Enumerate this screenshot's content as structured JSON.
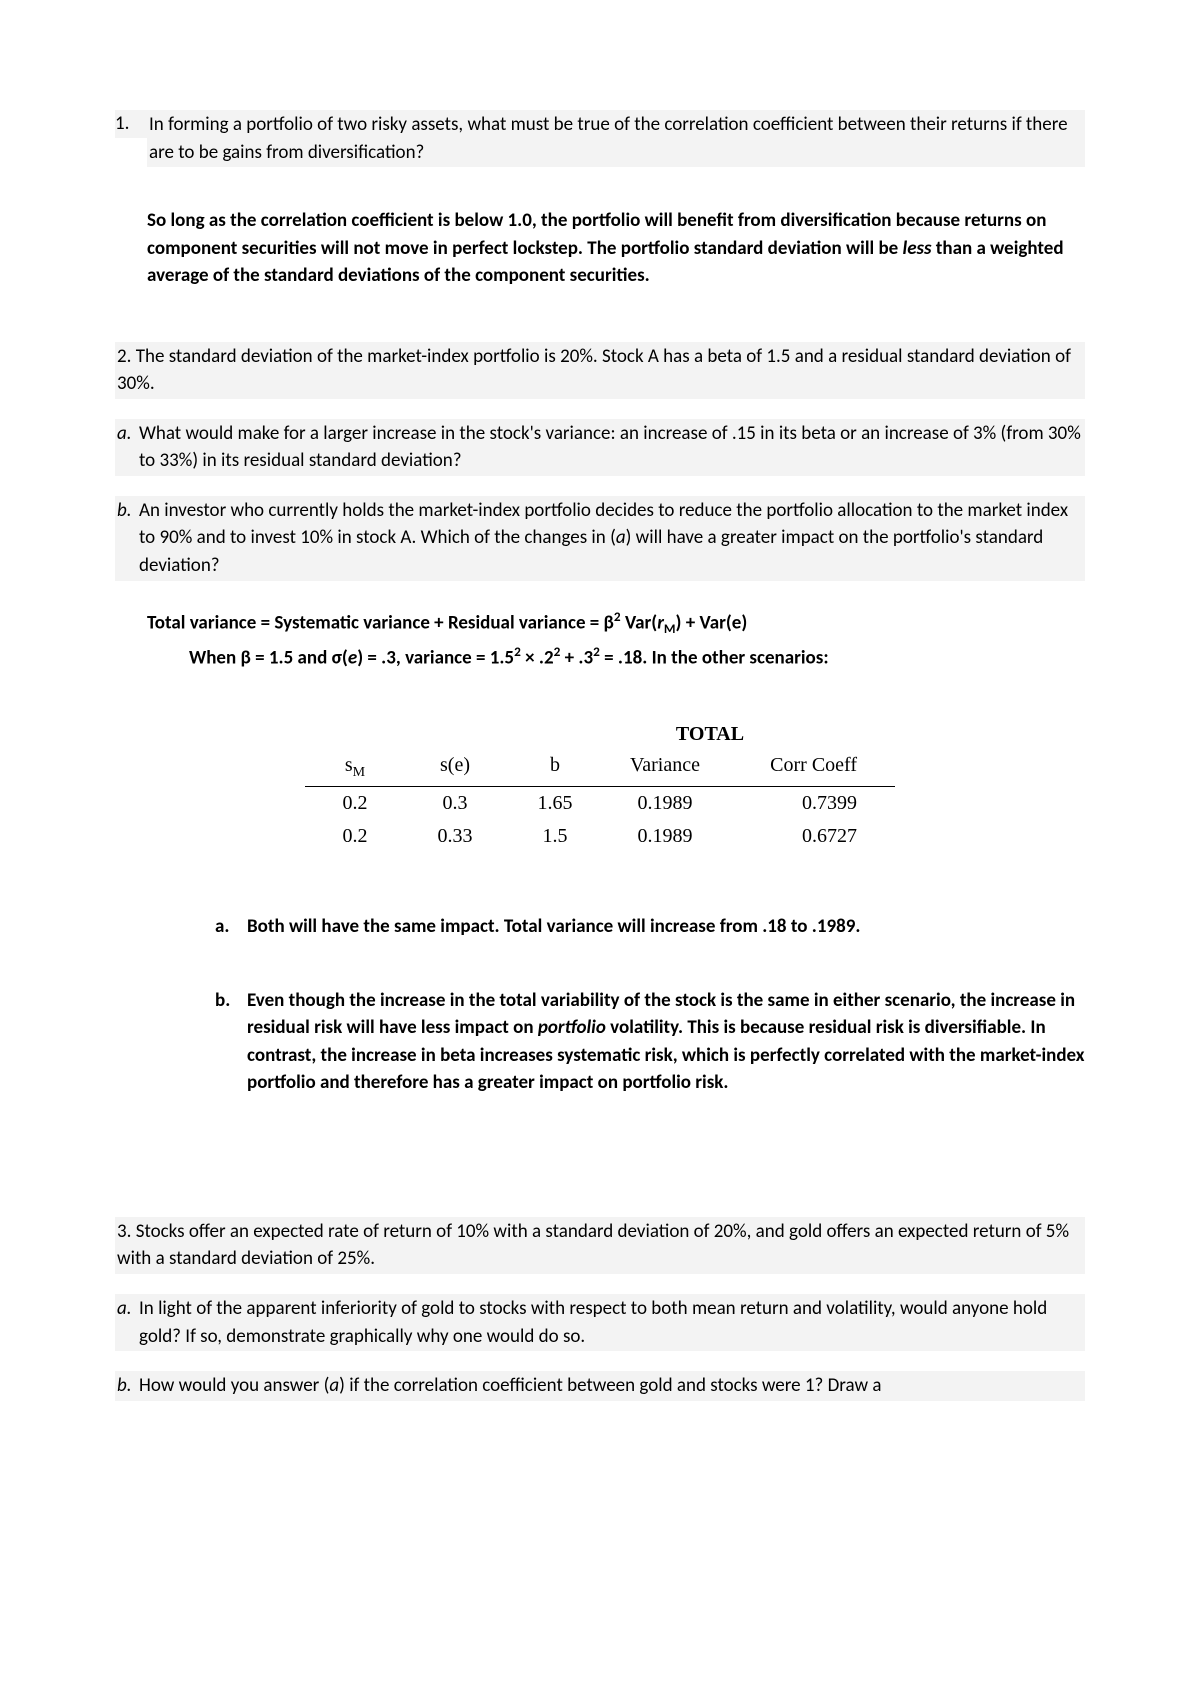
{
  "q1": {
    "number": "1.",
    "text": "In forming a portfolio of two risky assets, what must be true of the correlation coefficient between their returns if there are to be gains from diversification?",
    "answer_p1": "So long as the correlation coefficient is below 1.0, the portfolio will benefit from diversification because returns on component securities will not move in perfect lockstep. The portfolio standard deviation will be ",
    "answer_italic": "less",
    "answer_p2": " than a weighted average of the standard deviations of the component securities."
  },
  "q2": {
    "header": "2. The standard deviation of the market-index portfolio is 20%. Stock A has a beta of 1.5 and a residual standard deviation of 30%.",
    "a_label": "a.",
    "a_text": "What would make for a larger increase in the stock's variance: an increase of .15 in its beta or an increase of 3% (from 30% to 33%) in its residual standard deviation?",
    "b_label": "b.",
    "b_text_1": "An investor who currently holds the market-index portfolio decides to reduce the portfolio allocation to the market index to 90% and to invest 10% in stock A. Which of the changes in (",
    "b_text_a": "a",
    "b_text_2": ") will have a greater impact on the portfolio's standard deviation?",
    "formula1_pre": "Total variance = Systematic variance + Residual variance = β",
    "formula1_sup": "2",
    "formula1_mid": " Var(",
    "formula1_r": "r",
    "formula1_sub": "M",
    "formula1_post": ") + Var(e)",
    "formula2_pre": "When β = 1.5 and σ(",
    "formula2_e": "e",
    "formula2_mid": ") = .3, variance = 1.5",
    "formula2_s1": "2",
    "formula2_x": " × .2",
    "formula2_s2": "2",
    "formula2_p": " + .3",
    "formula2_s3": "2",
    "formula2_eq": " = .18. In the other scenarios:",
    "table": {
      "title": "TOTAL",
      "headers": {
        "sm": "s",
        "sm_sub": "M",
        "se": "s(e)",
        "b": "b",
        "var": "Variance",
        "cc": "Corr Coeff"
      },
      "rows": [
        {
          "sm": "0.2",
          "se": "0.3",
          "b": "1.65",
          "var": "0.1989",
          "cc": "0.7399"
        },
        {
          "sm": "0.2",
          "se": "0.33",
          "b": "1.5",
          "var": "0.1989",
          "cc": "0.6727"
        }
      ]
    },
    "ans_a_label": "a.",
    "ans_a_text": "Both will have the same impact. Total variance will increase from .18 to .1989.",
    "ans_b_label": "b.",
    "ans_b_p1": "Even though the increase in the total variability of the stock is the same in either scenario, the increase in residual risk will have less impact on ",
    "ans_b_italic": "portfolio",
    "ans_b_p2": " volatility. This is because residual risk is diversifiable. In contrast, the increase in beta increases systematic risk, which is perfectly correlated with the market-index portfolio and therefore has a greater impact on portfolio risk."
  },
  "q3": {
    "header": "3. Stocks offer an expected rate of return of 10% with a standard deviation of 20%, and gold offers an expected return of 5% with a standard deviation of 25%.",
    "a_label": "a.",
    "a_text": "In light of the apparent inferiority of gold to stocks with respect to both mean return and volatility, would anyone hold gold? If so, demonstrate graphically why one would do so.",
    "b_label": "b.",
    "b_text_1": "How would you answer (",
    "b_text_a": "a",
    "b_text_2": ") if the correlation coefficient between gold and stocks were 1? Draw a"
  }
}
